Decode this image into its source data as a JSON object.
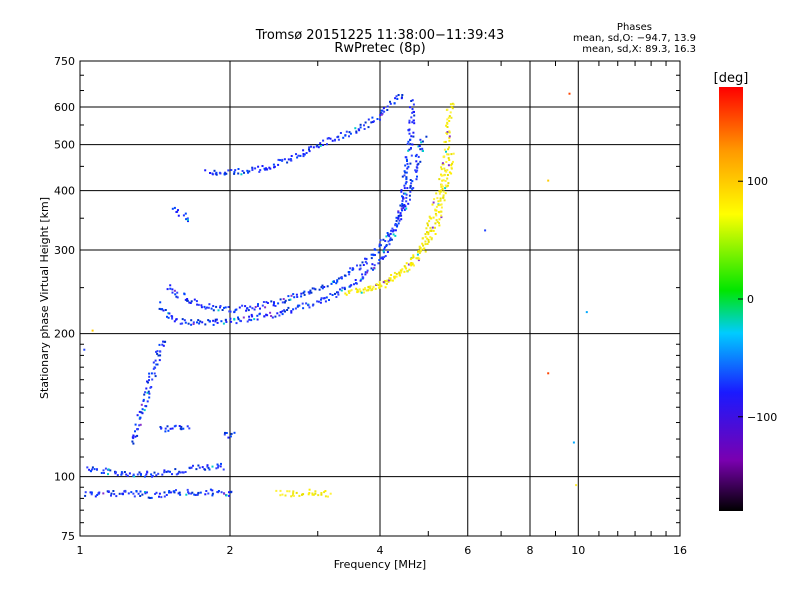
{
  "header": {
    "title_line1": "Tromsø 20151225 11:38:00−11:39:43",
    "title_line2": "RwPretec (8p)",
    "phases_label": "Phases",
    "stats_o": "mean, sd,O: −94.7, 13.9",
    "stats_x": "mean, sd,X:  89.3, 16.3"
  },
  "chart_data": {
    "type": "scatter",
    "xlabel": "Frequency [MHz]",
    "ylabel": "Stationary phase Virtual Height [km]",
    "xscale": "log",
    "yscale": "log",
    "xlim": [
      1,
      16
    ],
    "ylim": [
      75,
      750
    ],
    "x_ticks": [
      1,
      2,
      4,
      6,
      8,
      10,
      16
    ],
    "x_tick_labels": [
      "1",
      "2",
      "4",
      "6",
      "8",
      "10",
      "16"
    ],
    "y_ticks": [
      75,
      100,
      200,
      300,
      400,
      500,
      600,
      750
    ],
    "y_tick_labels": [
      "75",
      "100",
      "200",
      "300",
      "400",
      "500",
      "600",
      "750"
    ],
    "grid": true,
    "colorbar": {
      "label": "[deg]",
      "range": [
        -180,
        180
      ],
      "ticks": [
        100,
        0,
        -100
      ],
      "tick_labels": [
        "100",
        "0",
        "−100"
      ]
    },
    "colors": {
      "o_mode": "#1a33ff",
      "x_mode": "#f0ea1a"
    },
    "traces": [
      {
        "name": "",
        "mode": "O",
        "x": [
          1.03,
          1.1,
          1.2,
          1.3,
          1.4,
          1.5,
          1.6,
          1.7,
          1.8,
          1.95
        ],
        "y": [
          104,
          103,
          102,
          101,
          101,
          102,
          103,
          104,
          105,
          105
        ]
      },
      {
        "name": "",
        "mode": "O",
        "x": [
          1.03,
          1.1,
          1.2,
          1.3,
          1.4,
          1.5,
          1.6,
          1.7,
          1.8,
          1.9,
          2.05
        ],
        "y": [
          92,
          92,
          92,
          92,
          91,
          92,
          93,
          92,
          93,
          92,
          92
        ]
      },
      {
        "name": "",
        "mode": "O",
        "x": [
          1.28,
          1.32,
          1.36,
          1.4,
          1.44,
          1.48
        ],
        "y": [
          118,
          132,
          148,
          165,
          182,
          195
        ]
      },
      {
        "name": "",
        "mode": "O",
        "x": [
          1.45,
          1.5,
          1.6,
          1.7,
          1.8,
          1.95,
          2.1,
          2.3,
          2.5,
          2.8,
          3.1,
          3.4,
          3.7,
          4.0,
          4.2,
          4.4,
          4.5,
          4.6,
          4.65
        ],
        "y": [
          230,
          218,
          212,
          211,
          211,
          212,
          214,
          217,
          221,
          228,
          236,
          248,
          262,
          285,
          315,
          360,
          420,
          500,
          620
        ]
      },
      {
        "name": "",
        "mode": "O",
        "x": [
          1.5,
          1.65,
          1.8,
          2.0,
          2.3,
          2.6,
          2.9,
          3.2,
          3.5,
          3.8,
          4.1,
          4.4,
          4.7,
          4.9
        ],
        "y": [
          250,
          235,
          228,
          225,
          228,
          236,
          246,
          256,
          270,
          288,
          315,
          355,
          430,
          520
        ]
      },
      {
        "name": "",
        "mode": "O",
        "x": [
          1.8,
          2.0,
          2.2,
          2.5,
          2.8,
          3.1,
          3.4,
          3.7,
          4.0,
          4.2,
          4.35,
          4.45
        ],
        "y": [
          440,
          437,
          440,
          455,
          480,
          505,
          525,
          545,
          575,
          610,
          630,
          640
        ]
      },
      {
        "name": "",
        "mode": "O",
        "x": [
          1.55,
          1.6,
          1.65
        ],
        "y": [
          365,
          355,
          345
        ]
      },
      {
        "name": "",
        "mode": "O",
        "x": [
          1.45,
          1.55,
          1.65
        ],
        "y": [
          126,
          127,
          126
        ]
      },
      {
        "name": "",
        "mode": "O",
        "x": [
          1.95,
          2.05
        ],
        "y": [
          122,
          122
        ]
      },
      {
        "name": "",
        "mode": "X",
        "x": [
          3.4,
          3.8,
          4.2,
          4.6,
          4.9,
          5.1,
          5.3,
          5.45,
          5.5,
          5.55
        ],
        "y": [
          243,
          248,
          260,
          280,
          310,
          350,
          410,
          490,
          560,
          620
        ]
      },
      {
        "name": "",
        "mode": "X",
        "x": [
          3.6,
          4.0,
          4.5,
          4.9,
          5.2,
          5.4,
          5.6
        ],
        "y": [
          245,
          252,
          270,
          300,
          340,
          400,
          480
        ]
      },
      {
        "name": "",
        "mode": "X",
        "x": [
          2.5,
          2.6,
          2.7,
          3.0,
          3.1,
          3.2
        ],
        "y": [
          92,
          92,
          92,
          93,
          92,
          92
        ]
      }
    ],
    "isolated_points": [
      {
        "x": 6.5,
        "y": 330
      },
      {
        "x": 8.7,
        "y": 420
      },
      {
        "x": 9.6,
        "y": 640
      },
      {
        "x": 10.4,
        "y": 222
      },
      {
        "x": 9.9,
        "y": 96
      },
      {
        "x": 1.02,
        "y": 185
      },
      {
        "x": 1.06,
        "y": 203
      },
      {
        "x": 8.7,
        "y": 165
      },
      {
        "x": 9.8,
        "y": 118
      }
    ]
  }
}
